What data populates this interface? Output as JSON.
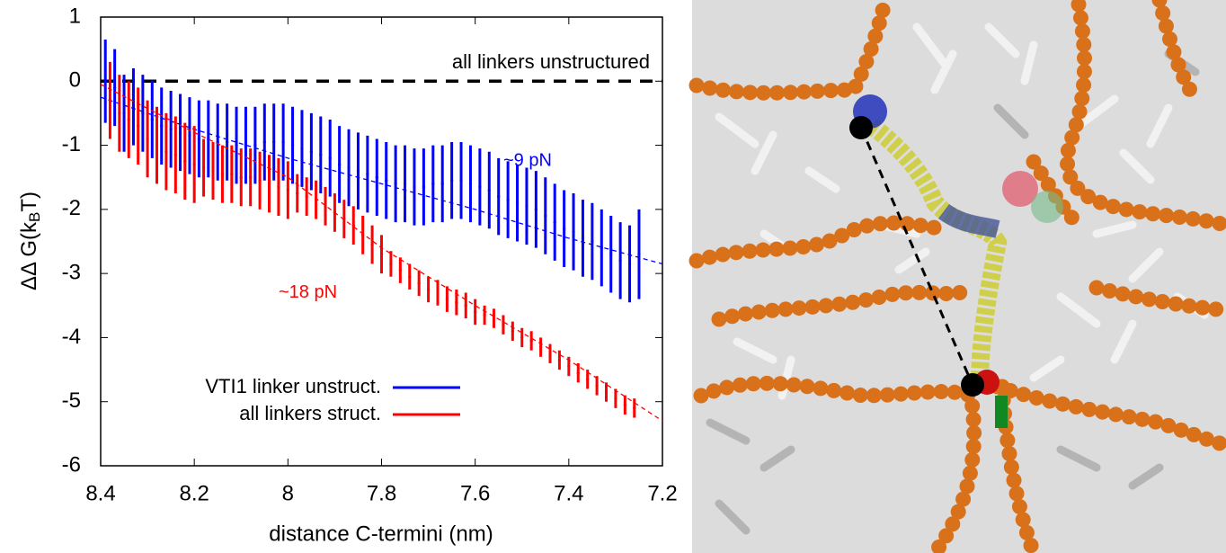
{
  "chart_data": {
    "type": "errorbar",
    "x_label": "distance C-termini (nm)",
    "y_label_parts": [
      "ΔΔ G(k",
      "B",
      "T)"
    ],
    "xlim": [
      8.4,
      7.2
    ],
    "ylim": [
      -6,
      1
    ],
    "xticks": [
      8.4,
      8.2,
      8,
      7.8,
      7.6,
      7.4,
      7.2
    ],
    "yticks": [
      -6,
      -5,
      -4,
      -3,
      -2,
      -1,
      0,
      1
    ],
    "reference_line": {
      "value": 0,
      "label": "all linkers unstructured"
    },
    "legend": "lower left",
    "series": [
      {
        "name": "VTI1 linker unstruct.",
        "color": "#0000ff",
        "annotation": "~9 pN",
        "x": [
          8.39,
          8.37,
          8.35,
          8.33,
          8.31,
          8.29,
          8.27,
          8.25,
          8.23,
          8.21,
          8.19,
          8.17,
          8.15,
          8.13,
          8.11,
          8.09,
          8.07,
          8.05,
          8.03,
          8.01,
          7.99,
          7.97,
          7.95,
          7.93,
          7.91,
          7.89,
          7.87,
          7.85,
          7.83,
          7.81,
          7.79,
          7.77,
          7.75,
          7.73,
          7.71,
          7.69,
          7.67,
          7.65,
          7.63,
          7.61,
          7.59,
          7.57,
          7.55,
          7.53,
          7.51,
          7.49,
          7.47,
          7.45,
          7.43,
          7.41,
          7.39,
          7.37,
          7.35,
          7.33,
          7.31,
          7.29,
          7.27,
          7.25
        ],
        "values": [
          0,
          -0.1,
          -0.5,
          -0.4,
          -0.5,
          -0.6,
          -0.7,
          -0.75,
          -0.8,
          -0.85,
          -0.9,
          -0.9,
          -0.95,
          -0.95,
          -1.0,
          -1.0,
          -1.0,
          -0.95,
          -0.95,
          -0.95,
          -1.0,
          -1.05,
          -1.1,
          -1.15,
          -1.2,
          -1.3,
          -1.35,
          -1.4,
          -1.45,
          -1.5,
          -1.55,
          -1.6,
          -1.6,
          -1.65,
          -1.65,
          -1.6,
          -1.6,
          -1.55,
          -1.55,
          -1.6,
          -1.65,
          -1.7,
          -1.8,
          -1.85,
          -1.9,
          -1.95,
          -2.0,
          -2.1,
          -2.2,
          -2.3,
          -2.35,
          -2.45,
          -2.5,
          -2.6,
          -2.7,
          -2.8,
          -2.85,
          -2.7
        ],
        "errors": [
          0.65,
          0.6,
          0.6,
          0.6,
          0.6,
          0.6,
          0.6,
          0.6,
          0.6,
          0.6,
          0.6,
          0.6,
          0.6,
          0.6,
          0.6,
          0.6,
          0.6,
          0.6,
          0.6,
          0.6,
          0.6,
          0.6,
          0.6,
          0.6,
          0.6,
          0.6,
          0.6,
          0.6,
          0.6,
          0.6,
          0.6,
          0.6,
          0.6,
          0.6,
          0.6,
          0.6,
          0.6,
          0.6,
          0.6,
          0.6,
          0.6,
          0.6,
          0.6,
          0.6,
          0.6,
          0.6,
          0.6,
          0.6,
          0.6,
          0.6,
          0.6,
          0.6,
          0.6,
          0.6,
          0.6,
          0.6,
          0.6,
          0.7
        ],
        "fit": {
          "x": [
            8.4,
            8.2,
            8.0,
            7.8,
            7.6,
            7.4,
            7.2
          ],
          "values": [
            -0.25,
            -0.75,
            -1.2,
            -1.6,
            -2.0,
            -2.45,
            -2.85
          ]
        }
      },
      {
        "name": "all linkers struct.",
        "color": "#ff0000",
        "annotation": "~18 pN",
        "x": [
          8.38,
          8.36,
          8.34,
          8.32,
          8.3,
          8.28,
          8.26,
          8.24,
          8.22,
          8.2,
          8.18,
          8.16,
          8.14,
          8.12,
          8.1,
          8.08,
          8.06,
          8.04,
          8.02,
          8.0,
          7.98,
          7.96,
          7.94,
          7.92,
          7.9,
          7.88,
          7.86,
          7.84,
          7.82,
          7.8,
          7.78,
          7.76,
          7.74,
          7.72,
          7.7,
          7.68,
          7.66,
          7.64,
          7.62,
          7.6,
          7.58,
          7.56,
          7.54,
          7.52,
          7.5,
          7.48,
          7.46,
          7.44,
          7.42,
          7.4,
          7.38,
          7.36,
          7.34,
          7.32,
          7.3,
          7.28,
          7.26
        ],
        "values": [
          -0.3,
          -0.5,
          -0.6,
          -0.7,
          -0.9,
          -1.0,
          -1.1,
          -1.15,
          -1.25,
          -1.3,
          -1.35,
          -1.4,
          -1.45,
          -1.45,
          -1.5,
          -1.5,
          -1.55,
          -1.6,
          -1.65,
          -1.7,
          -1.75,
          -1.8,
          -1.85,
          -1.95,
          -2.05,
          -2.15,
          -2.25,
          -2.4,
          -2.55,
          -2.7,
          -2.85,
          -2.95,
          -3.05,
          -3.15,
          -3.25,
          -3.3,
          -3.4,
          -3.45,
          -3.5,
          -3.6,
          -3.65,
          -3.7,
          -3.8,
          -3.9,
          -4.0,
          -4.05,
          -4.15,
          -4.25,
          -4.35,
          -4.45,
          -4.55,
          -4.65,
          -4.75,
          -4.85,
          -4.95,
          -5.05,
          -5.1
        ],
        "errors": [
          0.6,
          0.6,
          0.6,
          0.6,
          0.6,
          0.6,
          0.6,
          0.6,
          0.6,
          0.6,
          0.45,
          0.45,
          0.45,
          0.45,
          0.45,
          0.45,
          0.45,
          0.45,
          0.45,
          0.45,
          0.3,
          0.3,
          0.3,
          0.3,
          0.3,
          0.3,
          0.3,
          0.3,
          0.3,
          0.3,
          0.2,
          0.2,
          0.2,
          0.2,
          0.2,
          0.2,
          0.2,
          0.2,
          0.2,
          0.2,
          0.15,
          0.15,
          0.15,
          0.15,
          0.15,
          0.15,
          0.15,
          0.15,
          0.15,
          0.15,
          0.15,
          0.15,
          0.15,
          0.15,
          0.15,
          0.15,
          0.15
        ],
        "fit": {
          "x": [
            8.4,
            8.2,
            8.0,
            7.8,
            7.6,
            7.4,
            7.2
          ],
          "values": [
            -0.05,
            -0.8,
            -1.5,
            -2.6,
            -3.5,
            -4.35,
            -5.3
          ]
        }
      }
    ]
  }
}
